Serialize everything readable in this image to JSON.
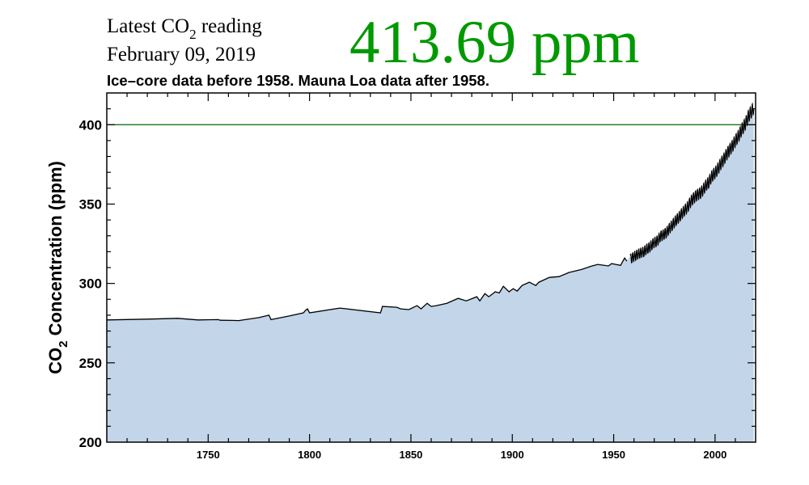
{
  "header": {
    "latest_label_pre": "Latest CO",
    "latest_label_sub": "2",
    "latest_label_post": " reading",
    "date": "February 09, 2019",
    "latest_value": "413.69 ppm",
    "latest_value_color": "#009900",
    "subtitle": "Ice–core data before 1958. Mauna Loa data after 1958."
  },
  "chart_data": {
    "type": "area",
    "title": "",
    "xlabel": "",
    "ylabel_pre": "CO",
    "ylabel_sub": "2",
    "ylabel_post": " Concentration (ppm)",
    "xlim": [
      1700,
      2020
    ],
    "ylim": [
      200,
      420
    ],
    "x_ticks": [
      "1750",
      "1800",
      "1850",
      "1900",
      "1950",
      "2000"
    ],
    "y_ticks": [
      "200",
      "250",
      "300",
      "350",
      "400"
    ],
    "grid": false,
    "reference_line": {
      "value": 400,
      "color": "#006600"
    },
    "fill_color": "#c3d5e9",
    "line_color": "#000000",
    "series": [
      {
        "source": "ice-core",
        "points": [
          [
            1700,
            277
          ],
          [
            1720,
            277.5
          ],
          [
            1735,
            278
          ],
          [
            1745,
            277
          ],
          [
            1755,
            277.2
          ],
          [
            1756,
            276.8
          ],
          [
            1762,
            276.7
          ],
          [
            1765,
            276.6
          ],
          [
            1775,
            278.5
          ],
          [
            1780,
            280
          ],
          [
            1781,
            277.2
          ],
          [
            1790,
            279.5
          ],
          [
            1797,
            281.5
          ],
          [
            1798,
            283
          ],
          [
            1799,
            284
          ],
          [
            1800,
            281.5
          ],
          [
            1815,
            284.5
          ],
          [
            1835,
            281.5
          ],
          [
            1836,
            285.5
          ],
          [
            1843,
            285
          ],
          [
            1845,
            284
          ],
          [
            1849,
            283.5
          ],
          [
            1853,
            286
          ],
          [
            1855,
            284
          ],
          [
            1858,
            287.5
          ],
          [
            1860,
            285.5
          ],
          [
            1862.5,
            286
          ],
          [
            1867.7,
            287.5
          ],
          [
            1873.3,
            290.6
          ],
          [
            1877.3,
            289
          ],
          [
            1882.5,
            291.6
          ],
          [
            1884,
            289
          ],
          [
            1886.5,
            293.6
          ],
          [
            1888.4,
            291.6
          ],
          [
            1891.6,
            294.7
          ],
          [
            1893.6,
            294
          ],
          [
            1895.6,
            298.2
          ],
          [
            1898.4,
            294.7
          ],
          [
            1900.4,
            296.7
          ],
          [
            1902.4,
            295.2
          ],
          [
            1904.8,
            298.7
          ],
          [
            1908.4,
            300.8
          ],
          [
            1911.6,
            298.7
          ],
          [
            1913.1,
            300.8
          ],
          [
            1918.3,
            303.8
          ],
          [
            1923.1,
            304.3
          ],
          [
            1927.9,
            306.9
          ],
          [
            1934.3,
            308.9
          ],
          [
            1939,
            310.9
          ],
          [
            1942.2,
            312
          ],
          [
            1947.4,
            311
          ],
          [
            1949,
            312.5
          ],
          [
            1953.4,
            311.4
          ],
          [
            1955.4,
            316
          ],
          [
            1956.5,
            314
          ]
        ]
      },
      {
        "source": "Mauna Loa",
        "seasonal_amplitude_ppm": 3,
        "annual": [
          [
            1958,
            315.3
          ],
          [
            1959,
            316.0
          ],
          [
            1960,
            316.9
          ],
          [
            1961,
            317.6
          ],
          [
            1962,
            318.5
          ],
          [
            1963,
            319.0
          ],
          [
            1964,
            319.6
          ],
          [
            1965,
            320.0
          ],
          [
            1966,
            321.4
          ],
          [
            1967,
            322.2
          ],
          [
            1968,
            323.0
          ],
          [
            1969,
            324.6
          ],
          [
            1970,
            325.7
          ],
          [
            1971,
            326.3
          ],
          [
            1972,
            327.5
          ],
          [
            1973,
            329.7
          ],
          [
            1974,
            330.2
          ],
          [
            1975,
            331.1
          ],
          [
            1976,
            332.0
          ],
          [
            1977,
            333.8
          ],
          [
            1978,
            335.4
          ],
          [
            1979,
            336.8
          ],
          [
            1980,
            338.7
          ],
          [
            1981,
            340.1
          ],
          [
            1982,
            341.4
          ],
          [
            1983,
            343.0
          ],
          [
            1984,
            344.6
          ],
          [
            1985,
            346.0
          ],
          [
            1986,
            347.4
          ],
          [
            1987,
            349.2
          ],
          [
            1988,
            351.6
          ],
          [
            1989,
            353.1
          ],
          [
            1990,
            354.4
          ],
          [
            1991,
            355.6
          ],
          [
            1992,
            356.4
          ],
          [
            1993,
            357.1
          ],
          [
            1994,
            358.8
          ],
          [
            1995,
            360.8
          ],
          [
            1996,
            362.6
          ],
          [
            1997,
            363.7
          ],
          [
            1998,
            366.7
          ],
          [
            1999,
            368.4
          ],
          [
            2000,
            369.7
          ],
          [
            2001,
            371.3
          ],
          [
            2002,
            373.5
          ],
          [
            2003,
            375.8
          ],
          [
            2004,
            377.5
          ],
          [
            2005,
            379.8
          ],
          [
            2006,
            381.9
          ],
          [
            2007,
            383.8
          ],
          [
            2008,
            385.6
          ],
          [
            2009,
            387.4
          ],
          [
            2010,
            389.9
          ],
          [
            2011,
            391.7
          ],
          [
            2012,
            393.9
          ],
          [
            2013,
            396.5
          ],
          [
            2014,
            398.6
          ],
          [
            2015,
            400.8
          ],
          [
            2016,
            404.2
          ],
          [
            2017,
            406.5
          ],
          [
            2018,
            408.5
          ],
          [
            2019,
            410.5
          ]
        ]
      }
    ]
  }
}
